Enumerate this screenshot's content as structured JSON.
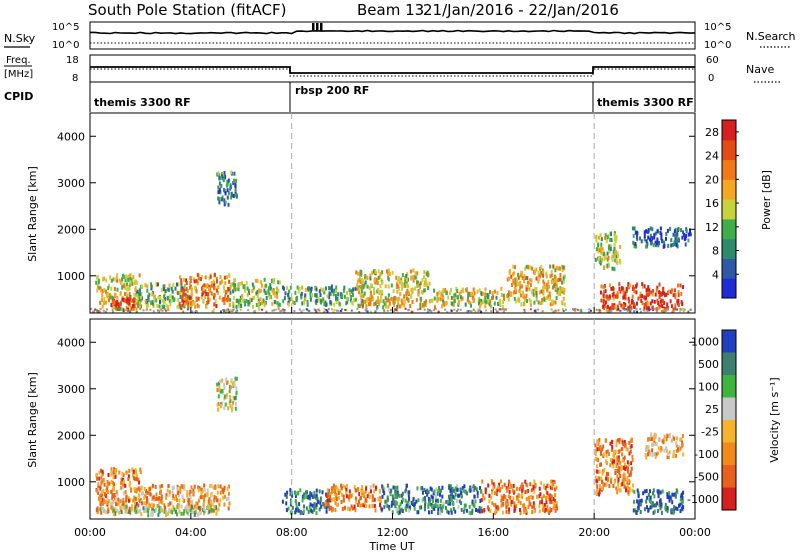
{
  "header": {
    "station": "South Pole Station (fitACF)",
    "beam": "Beam 13",
    "date_range": "21/Jan/2016 - 22/Jan/2016"
  },
  "panels": {
    "nsky": {
      "left_label": "N.Sky",
      "right_label": "N.Search",
      "left_ticks": [
        "10^5",
        "10^0"
      ],
      "right_ticks": [
        "10^5",
        "10^0"
      ]
    },
    "freq": {
      "left_label_top": "Freq.",
      "left_label_unit": "[MHz]",
      "left_ticks": [
        "18",
        "8"
      ],
      "right_label": "Nave",
      "right_ticks": [
        "60",
        "0"
      ]
    },
    "cpid": {
      "label": "CPID",
      "segments": [
        "themis 3300 RF",
        "rbsp 200 RF",
        "themis 3300 RF"
      ]
    }
  },
  "colors": {
    "power_scale": [
      "#1f2bd6",
      "#2f58a8",
      "#2e8a6a",
      "#3fae4a",
      "#c8d23c",
      "#f5a623",
      "#f07a1a",
      "#e34a14",
      "#d61f1f"
    ],
    "velocity_scale": [
      "#1f3fbf",
      "#3f7f70",
      "#3fb33f",
      "#c8c8c8",
      "#f5b430",
      "#f08a1a",
      "#e8601c",
      "#d62020"
    ],
    "ground_scatter": "#9a9a9a"
  },
  "chart_data": [
    {
      "type": "heatmap",
      "name": "power",
      "ylabel": "Slant Range [km]",
      "y_ticks": [
        "1000",
        "2000",
        "3000",
        "4000"
      ],
      "ylim": [
        200,
        4500
      ],
      "xlim_hours": [
        0,
        24
      ],
      "colorbar": {
        "title": "Power [dB]",
        "ticks": [
          "4",
          "8",
          "12",
          "16",
          "20",
          "24",
          "28"
        ],
        "range": [
          0,
          30
        ]
      },
      "blobs": [
        {
          "t0": 0.2,
          "t1": 2.0,
          "r0": 250,
          "r1": 1000,
          "level": 0.55
        },
        {
          "t0": 0.8,
          "t1": 1.8,
          "r0": 250,
          "r1": 500,
          "level": 0.95
        },
        {
          "t0": 1.8,
          "t1": 4.0,
          "r0": 300,
          "r1": 800,
          "level": 0.4
        },
        {
          "t0": 3.5,
          "t1": 5.5,
          "r0": 300,
          "r1": 1000,
          "level": 0.7
        },
        {
          "t0": 5.0,
          "t1": 5.8,
          "r0": 2500,
          "r1": 3200,
          "level": 0.25
        },
        {
          "t0": 5.5,
          "t1": 7.5,
          "r0": 300,
          "r1": 900,
          "level": 0.45
        },
        {
          "t0": 7.6,
          "t1": 10.5,
          "r0": 350,
          "r1": 750,
          "level": 0.35
        },
        {
          "t0": 10.5,
          "t1": 13.5,
          "r0": 300,
          "r1": 1100,
          "level": 0.55
        },
        {
          "t0": 13.5,
          "t1": 16.5,
          "r0": 300,
          "r1": 700,
          "level": 0.5
        },
        {
          "t0": 16.5,
          "t1": 18.8,
          "r0": 350,
          "r1": 1200,
          "level": 0.6
        },
        {
          "t0": 20.0,
          "t1": 21.0,
          "r0": 1100,
          "r1": 1900,
          "level": 0.45
        },
        {
          "t0": 20.2,
          "t1": 23.5,
          "r0": 250,
          "r1": 800,
          "level": 0.85
        },
        {
          "t0": 21.5,
          "t1": 23.8,
          "r0": 1600,
          "r1": 2000,
          "level": 0.15
        }
      ],
      "ground_band": {
        "r0": 200,
        "r1": 270
      }
    },
    {
      "type": "heatmap",
      "name": "velocity",
      "ylabel": "Slant Range [km]",
      "y_ticks": [
        "1000",
        "2000",
        "3000",
        "4000"
      ],
      "ylim": [
        200,
        4500
      ],
      "xlabel": "Time UT",
      "x_ticks": [
        "00:00",
        "04:00",
        "08:00",
        "12:00",
        "16:00",
        "20:00",
        "00:00"
      ],
      "xlim_hours": [
        0,
        24
      ],
      "colorbar": {
        "title": "Velocity [m s⁻¹]",
        "ticks": [
          "1000",
          "500",
          "100",
          "25",
          "-25",
          "-100",
          "-500",
          "-1000"
        ]
      },
      "blobs": [
        {
          "t0": 0.2,
          "t1": 2.0,
          "r0": 300,
          "r1": 1300,
          "level": 0.7
        },
        {
          "t0": 2.0,
          "t1": 5.5,
          "r0": 350,
          "r1": 900,
          "level": 0.65
        },
        {
          "t0": 0.3,
          "t1": 5.0,
          "r0": 250,
          "r1": 450,
          "level": 0.4
        },
        {
          "t0": 5.0,
          "t1": 5.8,
          "r0": 2500,
          "r1": 3200,
          "level": 0.45
        },
        {
          "t0": 7.6,
          "t1": 9.5,
          "r0": 300,
          "r1": 800,
          "level": 0.15
        },
        {
          "t0": 9.3,
          "t1": 11.5,
          "r0": 350,
          "r1": 900,
          "level": 0.72
        },
        {
          "t0": 11.5,
          "t1": 15.5,
          "r0": 300,
          "r1": 900,
          "level": 0.2
        },
        {
          "t0": 15.5,
          "t1": 18.5,
          "r0": 300,
          "r1": 1000,
          "level": 0.75
        },
        {
          "t0": 20.0,
          "t1": 21.5,
          "r0": 700,
          "r1": 1900,
          "level": 0.72
        },
        {
          "t0": 21.5,
          "t1": 23.5,
          "r0": 300,
          "r1": 800,
          "level": 0.1
        },
        {
          "t0": 22.0,
          "t1": 23.5,
          "r0": 1500,
          "r1": 2000,
          "level": 0.6
        }
      ]
    }
  ],
  "vlines_hours": [
    8,
    20
  ],
  "cpid_switch_hours": [
    8,
    20
  ]
}
